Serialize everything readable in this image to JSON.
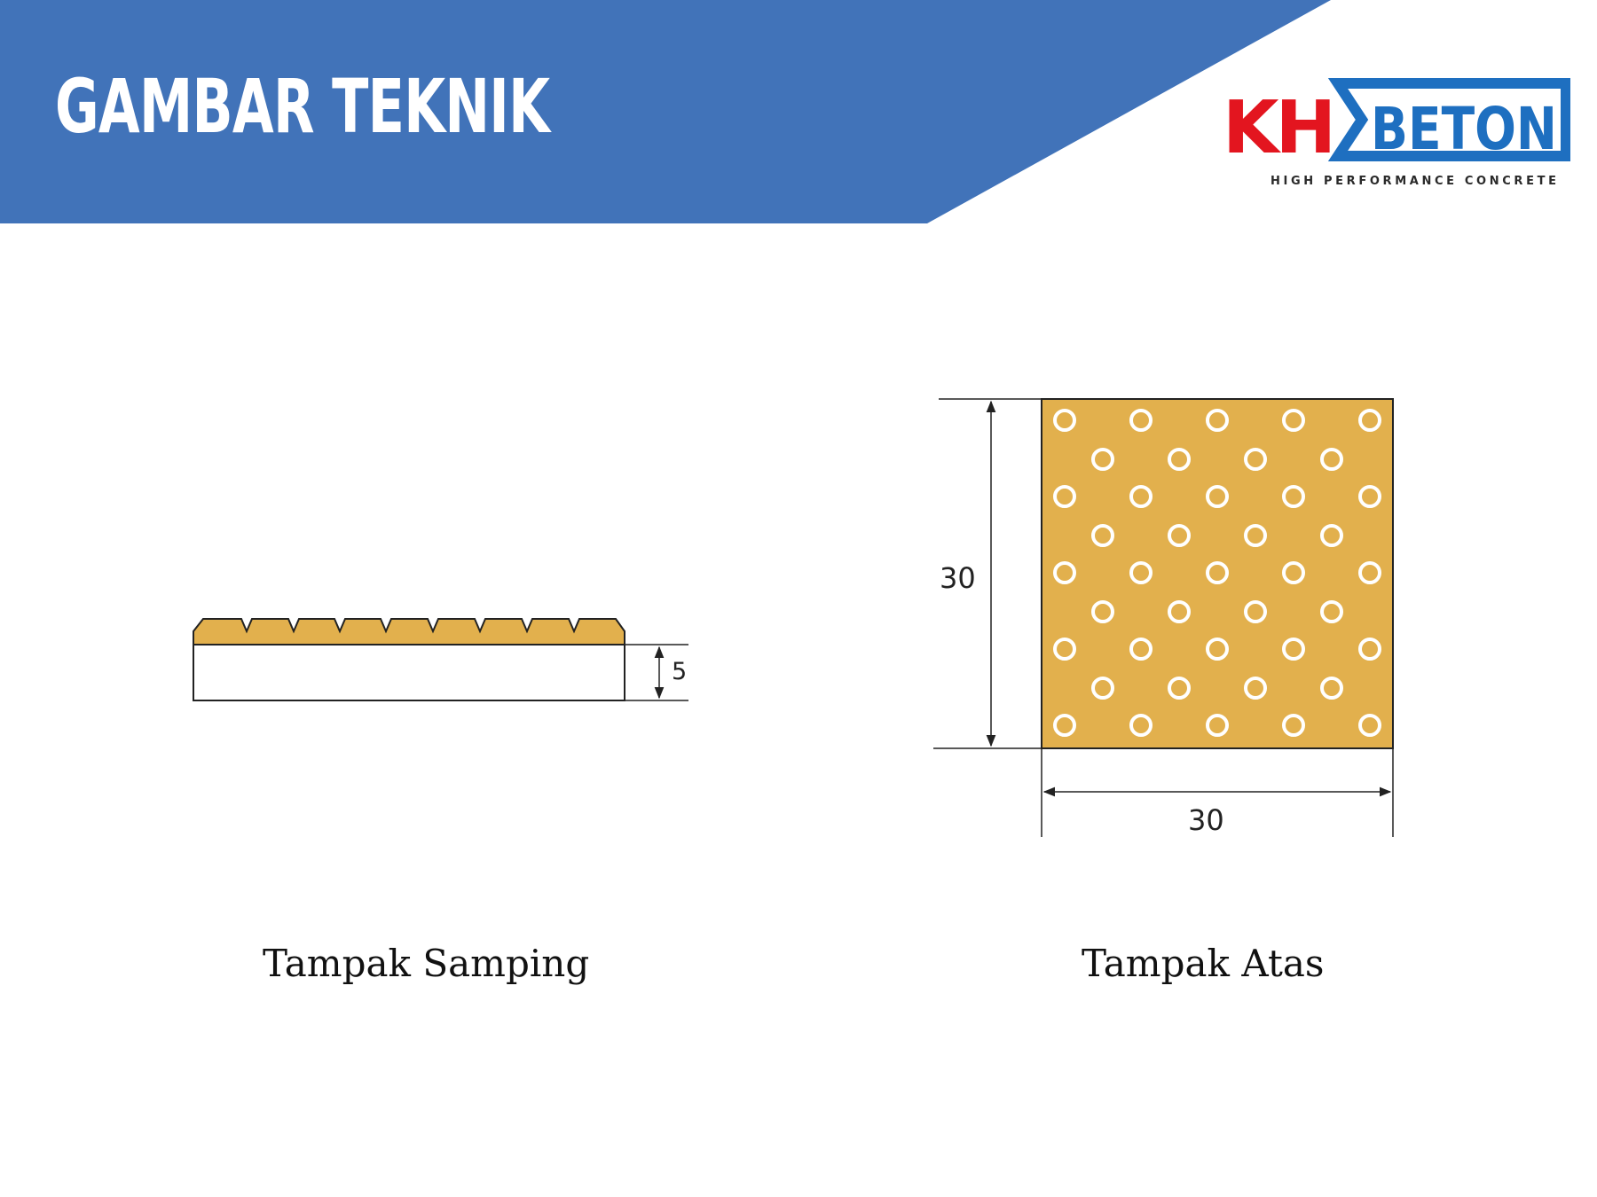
{
  "header": {
    "title": "GAMBAR TEKNIK",
    "band_color": "#4173b9"
  },
  "logo": {
    "part1": "KH",
    "part2": "BETON",
    "tagline": "HIGH PERFORMANCE CONCRETE",
    "red": "#e3151f",
    "blue": "#1e6fc0"
  },
  "views": {
    "side": {
      "caption": "Tampak Samping",
      "thickness_label": "5"
    },
    "top": {
      "caption": "Tampak Atas",
      "height_label": "30",
      "width_label": "30"
    }
  },
  "colors": {
    "tile_fill": "#e2b04d",
    "line": "#222222"
  }
}
